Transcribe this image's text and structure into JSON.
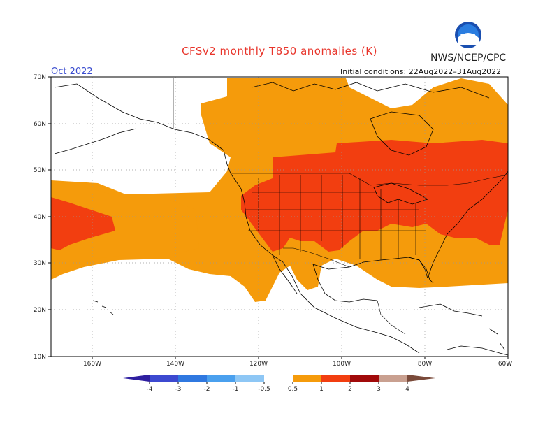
{
  "title": "CFSv2 monthly T850 anomalies (K)",
  "agency": "NWS/NCEP/CPC",
  "logo_text": "NOAA",
  "period": "Oct 2022",
  "initial_conditions": "Initial conditions: 22Aug2022–31Aug2022",
  "lat_labels": [
    "70N",
    "60N",
    "50N",
    "40N",
    "30N",
    "20N",
    "10N"
  ],
  "lon_labels": [
    "160W",
    "140W",
    "120W",
    "100W",
    "80W",
    "60W"
  ],
  "colorbar": {
    "labels": [
      "-4",
      "-3",
      "-2",
      "-1",
      "-0.5",
      "0.5",
      "1",
      "2",
      "3",
      "4"
    ],
    "colors": [
      "#2e1fa0",
      "#3c49d0",
      "#2f78e0",
      "#4aa0ee",
      "#8ec7f5",
      "#ffffff",
      "#f59b0b",
      "#f23e10",
      "#a10a0a",
      "#c9a090",
      "#7a4a3a"
    ]
  },
  "anomaly_colors": {
    "0.5-1": "#f59b0b",
    "1-2": "#f23e10"
  }
}
